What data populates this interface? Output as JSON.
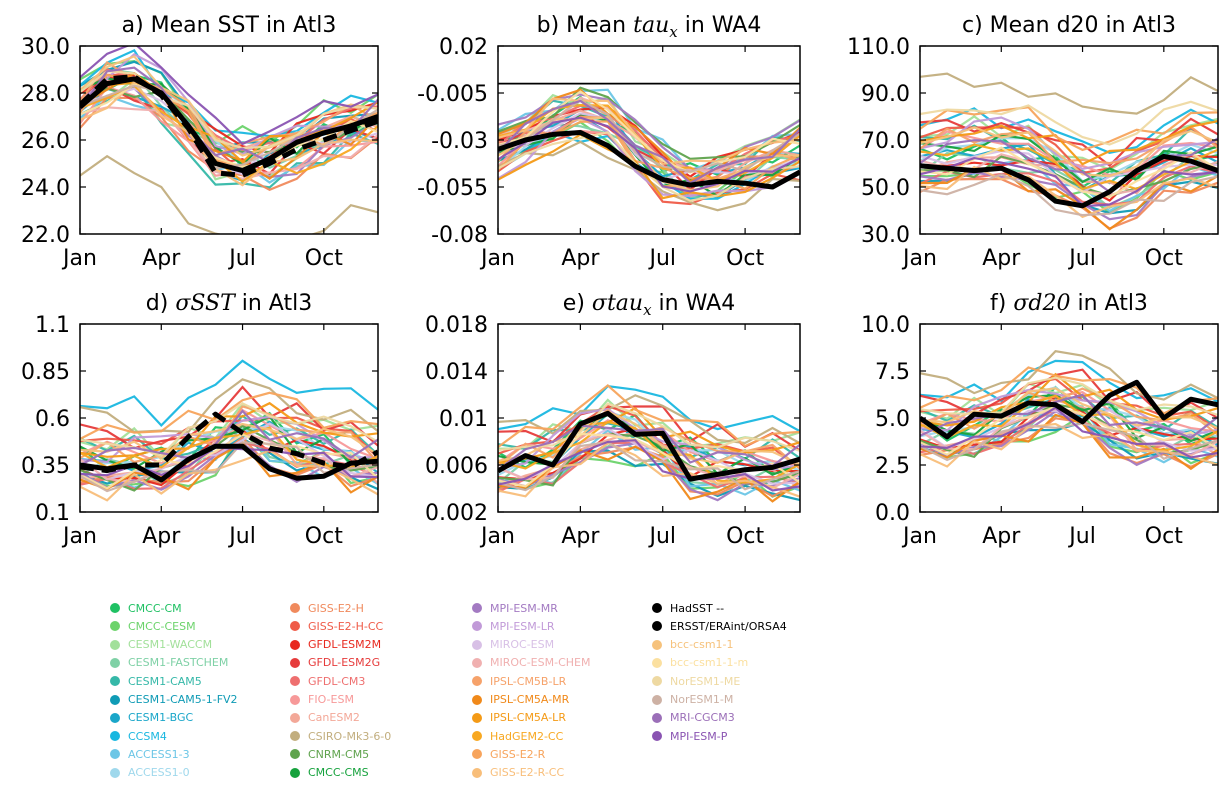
{
  "chart_data": [
    {
      "id": "a",
      "type": "line",
      "title": "a) Mean SST in Atl3",
      "x": [
        "Jan",
        "Feb",
        "Mar",
        "Apr",
        "May",
        "Jun",
        "Jul",
        "Aug",
        "Sep",
        "Oct",
        "Nov",
        "Dec"
      ],
      "xticks": [
        "Jan",
        "Apr",
        "Jul",
        "Oct"
      ],
      "yticks": [
        "30.0",
        "28.0",
        "26.0",
        "24.0",
        "22.0"
      ],
      "ylim": [
        22.0,
        30.0
      ],
      "reference": [
        {
          "name": "HadSST --",
          "style": "dashed",
          "values": [
            27.5,
            28.6,
            28.7,
            27.9,
            26.5,
            24.6,
            24.5,
            25.0,
            25.6,
            26.0,
            26.4,
            26.8
          ]
        },
        {
          "name": "ERSST/ERAint/ORSA4",
          "style": "solid",
          "values": [
            27.4,
            28.4,
            28.6,
            28.0,
            26.6,
            25.0,
            24.7,
            25.2,
            25.9,
            26.3,
            26.6,
            27.0
          ]
        }
      ],
      "base": [
        27.4,
        28.3,
        28.5,
        27.7,
        26.5,
        25.3,
        25.0,
        25.2,
        25.6,
        26.0,
        26.4,
        26.8
      ],
      "offsets": [
        0.35,
        1.1,
        -0.4,
        0.2,
        -0.7,
        0.6,
        -0.2,
        0.9,
        -0.5,
        0.4,
        -1.0,
        0.1,
        0.7,
        -0.3,
        0.5,
        -0.6,
        0.25,
        -3.5,
        -0.1,
        0.3,
        -0.45,
        0.8,
        0.05,
        -0.8,
        0.55,
        -0.25,
        0.45,
        -0.55,
        0.15,
        -0.35,
        0.65,
        -0.15,
        0.75,
        -0.05
      ]
    },
    {
      "id": "b",
      "type": "line",
      "title": "b) Mean tau_x in WA4",
      "title_parts": [
        "b) Mean ",
        "tau",
        "x",
        " in WA4"
      ],
      "x": [
        "Jan",
        "Feb",
        "Mar",
        "Apr",
        "May",
        "Jun",
        "Jul",
        "Aug",
        "Sep",
        "Oct",
        "Nov",
        "Dec"
      ],
      "xticks": [
        "Jan",
        "Apr",
        "Jul",
        "Oct"
      ],
      "yticks": [
        "0.02",
        "-0.005",
        "-0.03",
        "-0.055",
        "-0.08"
      ],
      "ylim": [
        -0.08,
        0.02
      ],
      "zero_line": 0.0,
      "reference": [
        {
          "name": "ERSST/ERAint/ORSA4",
          "style": "solid",
          "values": [
            -0.035,
            -0.03,
            -0.027,
            -0.026,
            -0.033,
            -0.044,
            -0.051,
            -0.054,
            -0.052,
            -0.053,
            -0.055,
            -0.047
          ]
        }
      ],
      "base": [
        -0.036,
        -0.028,
        -0.02,
        -0.015,
        -0.02,
        -0.034,
        -0.046,
        -0.052,
        -0.05,
        -0.046,
        -0.04,
        -0.034
      ],
      "offsets": [
        0.004,
        -0.006,
        0.009,
        -0.003,
        0.006,
        -0.008,
        0.002,
        -0.01,
        0.011,
        -0.004,
        0.003,
        -0.012,
        0.007,
        -0.001,
        0.005,
        -0.007,
        0.001,
        -0.014,
        0.008,
        -0.005,
        0.01,
        -0.009,
        0.0,
        0.004,
        -0.002,
        0.006,
        -0.011,
        0.003,
        -0.006,
        0.009,
        -0.003,
        0.005,
        -0.008,
        0.002
      ]
    },
    {
      "id": "c",
      "type": "line",
      "title": "c) Mean d20 in Atl3",
      "x": [
        "Jan",
        "Feb",
        "Mar",
        "Apr",
        "May",
        "Jun",
        "Jul",
        "Aug",
        "Sep",
        "Oct",
        "Nov",
        "Dec"
      ],
      "xticks": [
        "Jan",
        "Apr",
        "Jul",
        "Oct"
      ],
      "yticks": [
        "110.0",
        "90.0",
        "70.0",
        "50.0",
        "30.0"
      ],
      "ylim": [
        30.0,
        110.0
      ],
      "reference": [
        {
          "name": "ERSST/ERAint/ORSA4",
          "style": "solid",
          "values": [
            59,
            58,
            57,
            58,
            53,
            44,
            42,
            48,
            57,
            63,
            61,
            57
          ]
        }
      ],
      "base": [
        62,
        64,
        66,
        66,
        63,
        58,
        52,
        50,
        54,
        60,
        64,
        64
      ],
      "offsets": [
        2,
        -8,
        10,
        -4,
        6,
        -12,
        1,
        14,
        -6,
        4,
        -15,
        8,
        -2,
        12,
        -9,
        5,
        -3,
        30,
        -7,
        3,
        -11,
        9,
        0,
        -5,
        7,
        -13,
        11,
        -1,
        16,
        -10,
        6,
        -4,
        20,
        -14
      ]
    },
    {
      "id": "d",
      "type": "line",
      "title": "d) sigma SST in Atl3",
      "title_parts": [
        "d) ",
        "σSST",
        " in Atl3"
      ],
      "x": [
        "Jan",
        "Feb",
        "Mar",
        "Apr",
        "May",
        "Jun",
        "Jul",
        "Aug",
        "Sep",
        "Oct",
        "Nov",
        "Dec"
      ],
      "xticks": [
        "Jan",
        "Apr",
        "Jul",
        "Oct"
      ],
      "yticks": [
        "1.1",
        "0.85",
        "0.6",
        "0.35",
        "0.1"
      ],
      "ylim": [
        0.1,
        1.1
      ],
      "reference": [
        {
          "name": "HadSST --",
          "style": "dashed",
          "values": [
            0.34,
            0.32,
            0.35,
            0.35,
            0.5,
            0.62,
            0.52,
            0.44,
            0.41,
            0.36,
            0.34,
            0.42
          ]
        },
        {
          "name": "ERSST/ERAint/ORSA4",
          "style": "solid",
          "values": [
            0.35,
            0.33,
            0.35,
            0.27,
            0.38,
            0.45,
            0.45,
            0.33,
            0.28,
            0.29,
            0.36,
            0.37
          ]
        }
      ],
      "base": [
        0.36,
        0.34,
        0.36,
        0.34,
        0.38,
        0.45,
        0.55,
        0.5,
        0.45,
        0.42,
        0.38,
        0.36
      ],
      "offsets": [
        0.05,
        -0.08,
        0.12,
        -0.03,
        0.08,
        -0.1,
        0.02,
        0.3,
        -0.06,
        0.04,
        -0.12,
        0.1,
        -0.02,
        0.15,
        -0.09,
        0.06,
        -0.04,
        0.22,
        -0.07,
        0.03,
        -0.11,
        0.09,
        0.0,
        -0.05,
        0.07,
        -0.13,
        0.11,
        -0.01,
        0.18,
        -0.1,
        0.06,
        -0.04,
        0.14,
        -0.08
      ]
    },
    {
      "id": "e",
      "type": "line",
      "title": "e) sigma tau_x in WA4",
      "title_parts": [
        "e) ",
        "σtau",
        "x",
        " in WA4"
      ],
      "x": [
        "Jan",
        "Feb",
        "Mar",
        "Apr",
        "May",
        "Jun",
        "Jul",
        "Aug",
        "Sep",
        "Oct",
        "Nov",
        "Dec"
      ],
      "xticks": [
        "Jan",
        "Apr",
        "Jul",
        "Oct"
      ],
      "yticks": [
        "0.018",
        "0.014",
        "0.01",
        "0.006",
        "0.002"
      ],
      "ylim": [
        0.002,
        0.018
      ],
      "reference": [
        {
          "name": "ERSST/ERAint/ORSA4",
          "style": "solid",
          "values": [
            0.0055,
            0.0068,
            0.006,
            0.0095,
            0.0104,
            0.0086,
            0.0087,
            0.0048,
            0.0052,
            0.0056,
            0.0058,
            0.0065
          ]
        }
      ],
      "base": [
        0.0055,
        0.0058,
        0.0065,
        0.008,
        0.0088,
        0.0085,
        0.0075,
        0.0062,
        0.0058,
        0.0056,
        0.0055,
        0.0056
      ],
      "offsets": [
        0.001,
        -0.0015,
        0.002,
        -0.0005,
        0.0015,
        -0.002,
        0.0005,
        0.0035,
        -0.001,
        0.0008,
        -0.0018,
        0.0012,
        -0.0003,
        0.0025,
        -0.0014,
        0.0009,
        -0.0006,
        0.003,
        -0.0011,
        0.0004,
        -0.0016,
        0.0013,
        0.0,
        -0.0008,
        0.0011,
        -0.0019,
        0.0016,
        -0.0002,
        0.0028,
        -0.0013,
        0.0007,
        -0.0005,
        0.002,
        -0.0012
      ]
    },
    {
      "id": "f",
      "type": "line",
      "title": "f) sigma d20 in Atl3",
      "title_parts": [
        "f) ",
        "σd20",
        " in Atl3"
      ],
      "x": [
        "Jan",
        "Feb",
        "Mar",
        "Apr",
        "May",
        "Jun",
        "Jul",
        "Aug",
        "Sep",
        "Oct",
        "Nov",
        "Dec"
      ],
      "xticks": [
        "Jan",
        "Apr",
        "Jul",
        "Oct"
      ],
      "yticks": [
        "10.0",
        "7.5",
        "5.0",
        "2.5",
        "0.0"
      ],
      "ylim": [
        0.0,
        10.0
      ],
      "reference": [
        {
          "name": "ERSST/ERAint/ORSA4",
          "style": "solid",
          "values": [
            5.0,
            4.0,
            5.2,
            5.1,
            5.8,
            5.7,
            4.8,
            6.2,
            6.9,
            5.0,
            6.0,
            5.7
          ]
        }
      ],
      "base": [
        4.2,
        4.0,
        4.3,
        4.6,
        5.2,
        5.8,
        5.5,
        4.8,
        4.2,
        3.9,
        3.9,
        4.0
      ],
      "offsets": [
        0.4,
        -0.9,
        1.2,
        -0.3,
        0.8,
        -1.1,
        0.2,
        2.0,
        -0.6,
        0.5,
        -1.3,
        1.0,
        -0.2,
        1.5,
        -0.8,
        0.6,
        -0.4,
        2.5,
        -0.7,
        0.3,
        -1.0,
        0.9,
        0.0,
        -0.5,
        0.7,
        -1.2,
        1.1,
        -0.1,
        1.8,
        -0.9,
        0.6,
        -0.3,
        1.4,
        -0.8
      ]
    }
  ],
  "legend": {
    "columns": [
      [
        {
          "label": "CMCC-CM",
          "color": "#1fc163"
        },
        {
          "label": "CMCC-CESM",
          "color": "#6cd36b"
        },
        {
          "label": "CESM1-WACCM",
          "color": "#a2e09a"
        },
        {
          "label": "CESM1-FASTCHEM",
          "color": "#7fd1a6"
        },
        {
          "label": "CESM1-CAM5",
          "color": "#35b8a8"
        },
        {
          "label": "CESM1-CAM5-1-FV2",
          "color": "#0f9bb5"
        },
        {
          "label": "CESM1-BGC",
          "color": "#1aa6c9"
        },
        {
          "label": "CCSM4",
          "color": "#19b7e0"
        },
        {
          "label": "ACCESS1-3",
          "color": "#6cc6e6"
        },
        {
          "label": "ACCESS1-0",
          "color": "#9fd8ec"
        }
      ],
      [
        {
          "label": "GISS-E2-H",
          "color": "#f08a5d"
        },
        {
          "label": "GISS-E2-H-CC",
          "color": "#ef5b48"
        },
        {
          "label": "GFDL-ESM2M",
          "color": "#e8281e"
        },
        {
          "label": "GFDL-ESM2G",
          "color": "#e63b3b"
        },
        {
          "label": "GFDL-CM3",
          "color": "#ee6f6f"
        },
        {
          "label": "FIO-ESM",
          "color": "#f79999"
        },
        {
          "label": "CanESM2",
          "color": "#f3a898"
        },
        {
          "label": "CSIRO-Mk3-6-0",
          "color": "#c2ae7e"
        },
        {
          "label": "CNRM-CM5",
          "color": "#5fa34d"
        },
        {
          "label": "CMCC-CMS",
          "color": "#16a23d"
        }
      ],
      [
        {
          "label": "MPI-ESM-MR",
          "color": "#a37ac2"
        },
        {
          "label": "MPI-ESM-LR",
          "color": "#c19ad8"
        },
        {
          "label": "MIROC-ESM",
          "color": "#d8c0e6"
        },
        {
          "label": "MIROC-ESM-CHEM",
          "color": "#f0b0b0"
        },
        {
          "label": "IPSL-CM5B-LR",
          "color": "#f6a26a"
        },
        {
          "label": "IPSL-CM5A-MR",
          "color": "#f0891a"
        },
        {
          "label": "IPSL-CM5A-LR",
          "color": "#f49a16"
        },
        {
          "label": "HadGEM2-CC",
          "color": "#f8a821"
        },
        {
          "label": "GISS-E2-R",
          "color": "#f7a45c"
        },
        {
          "label": "GISS-E2-R-CC",
          "color": "#f8be7a"
        }
      ],
      [
        {
          "label": "HadSST --",
          "color": "#000000"
        },
        {
          "label": "ERSST/ERAint/ORSA4",
          "color": "#000000"
        },
        {
          "label": "bcc-csm1-1",
          "color": "#f6c27c"
        },
        {
          "label": "bcc-csm1-1-m",
          "color": "#fbe0a0"
        },
        {
          "label": "NorESM1-ME",
          "color": "#eed9a2"
        },
        {
          "label": "NorESM1-M",
          "color": "#cdb1a4"
        },
        {
          "label": "MRI-CGCM3",
          "color": "#9b6fb8"
        },
        {
          "label": "MPI-ESM-P",
          "color": "#8a54b2"
        }
      ]
    ]
  }
}
